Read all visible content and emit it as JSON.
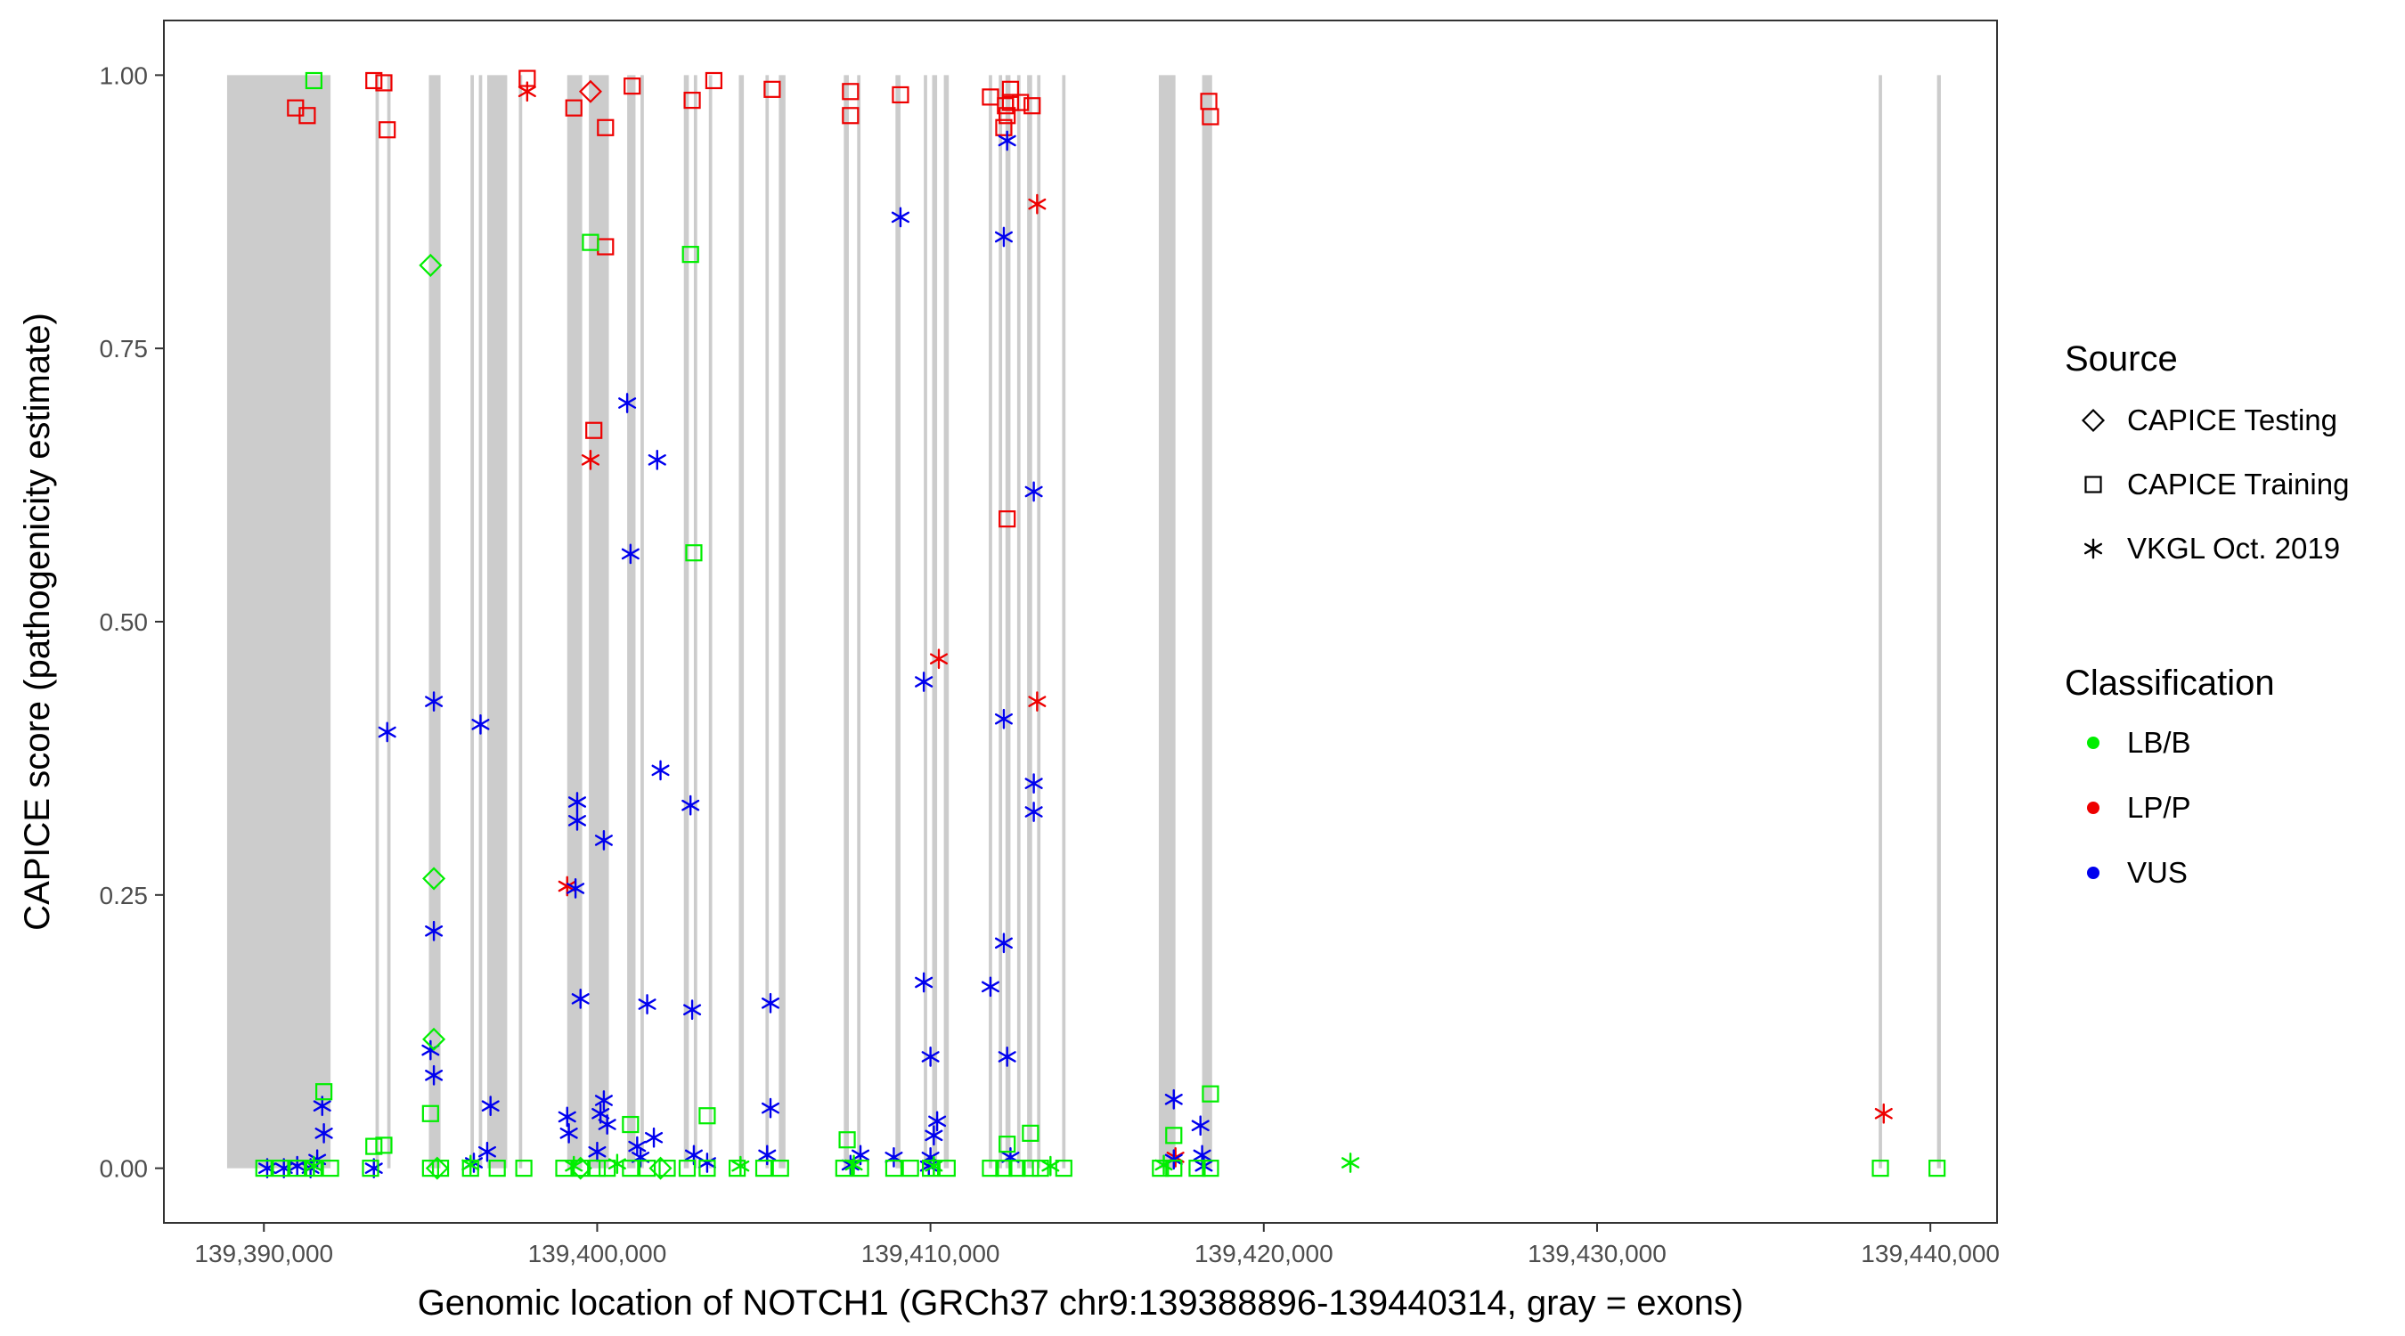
{
  "chart_data": {
    "type": "scatter",
    "title": "",
    "xlabel": "Genomic location of NOTCH1 (GRCh37 chr9:139388896-139440314, gray = exons)",
    "ylabel": "CAPICE score (pathogenicity estimate)",
    "xlim": [
      139387000,
      139442000
    ],
    "ylim": [
      -0.05,
      1.05
    ],
    "x_ticks": [
      139390000,
      139400000,
      139410000,
      139420000,
      139430000,
      139440000
    ],
    "x_tick_labels": [
      "139,390,000",
      "139,400,000",
      "139,410,000",
      "139,420,000",
      "139,430,000",
      "139,440,000"
    ],
    "y_ticks": [
      0,
      0.25,
      0.5,
      0.75,
      1.0
    ],
    "y_tick_labels": [
      "0.00",
      "0.25",
      "0.50",
      "0.75",
      "1.00"
    ],
    "grid": false,
    "exons": [
      [
        139388896,
        139392000
      ],
      [
        139393350,
        139393450
      ],
      [
        139393700,
        139393800
      ],
      [
        139394950,
        139395300
      ],
      [
        139396200,
        139396300
      ],
      [
        139396450,
        139396550
      ],
      [
        139396700,
        139397300
      ],
      [
        139397650,
        139397750
      ],
      [
        139399100,
        139399550
      ],
      [
        139399750,
        139400350
      ],
      [
        139400900,
        139401150
      ],
      [
        139401300,
        139401400
      ],
      [
        139402600,
        139402750
      ],
      [
        139402900,
        139403000
      ],
      [
        139403350,
        139403450
      ],
      [
        139404250,
        139404400
      ],
      [
        139405050,
        139405150
      ],
      [
        139405450,
        139405650
      ],
      [
        139407400,
        139407550
      ],
      [
        139407800,
        139407900
      ],
      [
        139408950,
        139409100
      ],
      [
        139409800,
        139409900
      ],
      [
        139410050,
        139410200
      ],
      [
        139410400,
        139410550
      ],
      [
        139411750,
        139411850
      ],
      [
        139412050,
        139412150
      ],
      [
        139412250,
        139412400
      ],
      [
        139412600,
        139412700
      ],
      [
        139412900,
        139413050
      ],
      [
        139413200,
        139413300
      ],
      [
        139413950,
        139414050
      ],
      [
        139416850,
        139417350
      ],
      [
        139418150,
        139418450
      ],
      [
        139438450,
        139438550
      ],
      [
        139440200,
        139440314
      ]
    ],
    "legend": {
      "placement": "right",
      "source_title": "Source",
      "classification_title": "Classification",
      "sources": [
        {
          "name": "CAPICE Testing",
          "shape": "diamond"
        },
        {
          "name": "CAPICE Training",
          "shape": "square"
        },
        {
          "name": "VKGL Oct. 2019",
          "shape": "asterisk"
        }
      ],
      "classes": [
        {
          "name": "LB/B",
          "color": "#00ee00"
        },
        {
          "name": "LP/P",
          "color": "#ee0000"
        },
        {
          "name": "VUS",
          "color": "#0000ee"
        }
      ]
    },
    "series": [
      {
        "name": "CAPICE Training LP/P",
        "shape": "square",
        "color": "#ee0000",
        "points": [
          [
            139390950,
            0.97
          ],
          [
            139391300,
            0.963
          ],
          [
            139393300,
            0.995
          ],
          [
            139393600,
            0.993
          ],
          [
            139393700,
            0.95
          ],
          [
            139397900,
            0.997
          ],
          [
            139399300,
            0.97
          ],
          [
            139399900,
            0.675
          ],
          [
            139400250,
            0.843
          ],
          [
            139400250,
            0.952
          ],
          [
            139401050,
            0.99
          ],
          [
            139402850,
            0.977
          ],
          [
            139403500,
            0.995
          ],
          [
            139405250,
            0.987
          ],
          [
            139407600,
            0.985
          ],
          [
            139407600,
            0.963
          ],
          [
            139409100,
            0.982
          ],
          [
            139411800,
            0.98
          ],
          [
            139412250,
            0.972
          ],
          [
            139412400,
            0.987
          ],
          [
            139412400,
            0.975
          ],
          [
            139412300,
            0.963
          ],
          [
            139412200,
            0.952
          ],
          [
            139412700,
            0.975
          ],
          [
            139413050,
            0.972
          ],
          [
            139412300,
            0.594
          ],
          [
            139418350,
            0.976
          ],
          [
            139418400,
            0.962
          ]
        ]
      },
      {
        "name": "CAPICE Testing LP/P",
        "shape": "diamond",
        "color": "#ee0000",
        "points": [
          [
            139399800,
            0.985
          ]
        ]
      },
      {
        "name": "VKGL LP/P",
        "shape": "asterisk",
        "color": "#ee0000",
        "points": [
          [
            139397900,
            0.985
          ],
          [
            139399800,
            0.648
          ],
          [
            139399100,
            0.258
          ],
          [
            139410250,
            0.466
          ],
          [
            139413200,
            0.882
          ],
          [
            139413200,
            0.427
          ],
          [
            139417350,
            0.01
          ],
          [
            139438600,
            0.05
          ]
        ]
      },
      {
        "name": "VKGL VUS",
        "shape": "asterisk",
        "color": "#0000ee",
        "points": [
          [
            139390100,
            0.0
          ],
          [
            139390600,
            0.0
          ],
          [
            139391000,
            0.002
          ],
          [
            139391400,
            0.0
          ],
          [
            139391750,
            0.057
          ],
          [
            139391800,
            0.032
          ],
          [
            139391600,
            0.008
          ],
          [
            139393300,
            0.0
          ],
          [
            139393700,
            0.399
          ],
          [
            139395100,
            0.427
          ],
          [
            139395100,
            0.217
          ],
          [
            139395000,
            0.108
          ],
          [
            139395100,
            0.085
          ],
          [
            139396500,
            0.406
          ],
          [
            139396800,
            0.057
          ],
          [
            139396700,
            0.015
          ],
          [
            139396300,
            0.005
          ],
          [
            139399100,
            0.047
          ],
          [
            139399150,
            0.032
          ],
          [
            139399400,
            0.335
          ],
          [
            139399400,
            0.318
          ],
          [
            139399350,
            0.256
          ],
          [
            139399500,
            0.155
          ],
          [
            139400200,
            0.3
          ],
          [
            139400200,
            0.062
          ],
          [
            139400100,
            0.05
          ],
          [
            139400300,
            0.04
          ],
          [
            139400000,
            0.015
          ],
          [
            139400900,
            0.7
          ],
          [
            139401000,
            0.562
          ],
          [
            139401500,
            0.15
          ],
          [
            139401800,
            0.648
          ],
          [
            139401900,
            0.364
          ],
          [
            139401700,
            0.028
          ],
          [
            139401200,
            0.02
          ],
          [
            139401300,
            0.01
          ],
          [
            139402800,
            0.332
          ],
          [
            139402850,
            0.145
          ],
          [
            139402900,
            0.012
          ],
          [
            139403300,
            0.005
          ],
          [
            139405200,
            0.151
          ],
          [
            139405200,
            0.055
          ],
          [
            139405100,
            0.012
          ],
          [
            139407600,
            0.003
          ],
          [
            139407900,
            0.012
          ],
          [
            139408900,
            0.01
          ],
          [
            139409100,
            0.87
          ],
          [
            139409800,
            0.445
          ],
          [
            139409800,
            0.17
          ],
          [
            139410000,
            0.102
          ],
          [
            139410200,
            0.043
          ],
          [
            139410100,
            0.03
          ],
          [
            139410000,
            0.01
          ],
          [
            139409950,
            0.002
          ],
          [
            139411800,
            0.166
          ],
          [
            139412300,
            0.94
          ],
          [
            139412200,
            0.852
          ],
          [
            139412200,
            0.411
          ],
          [
            139412200,
            0.206
          ],
          [
            139412300,
            0.102
          ],
          [
            139412400,
            0.01
          ],
          [
            139413100,
            0.619
          ],
          [
            139413100,
            0.352
          ],
          [
            139413100,
            0.326
          ],
          [
            139417300,
            0.063
          ],
          [
            139417300,
            0.008
          ],
          [
            139418100,
            0.039
          ],
          [
            139418150,
            0.012
          ],
          [
            139418200,
            0.002
          ]
        ]
      },
      {
        "name": "CAPICE Training LB/B",
        "shape": "square",
        "color": "#00ee00",
        "points": [
          [
            139391500,
            0.995
          ],
          [
            139391800,
            0.07
          ],
          [
            139393300,
            0.02
          ],
          [
            139393600,
            0.021
          ],
          [
            139395000,
            0.05
          ],
          [
            139399800,
            0.847
          ],
          [
            139402800,
            0.836
          ],
          [
            139402900,
            0.563
          ],
          [
            139403300,
            0.048
          ],
          [
            139401000,
            0.04
          ],
          [
            139407500,
            0.026
          ],
          [
            139412300,
            0.022
          ],
          [
            139413000,
            0.032
          ],
          [
            139417300,
            0.03
          ],
          [
            139418400,
            0.068
          ],
          [
            139390000,
            0.0
          ],
          [
            139390500,
            0.0
          ],
          [
            139391000,
            0.0
          ],
          [
            139391500,
            0.0
          ],
          [
            139392000,
            0.0
          ],
          [
            139393200,
            0.0
          ],
          [
            139395000,
            0.0
          ],
          [
            139395300,
            0.0
          ],
          [
            139396200,
            0.0
          ],
          [
            139397000,
            0.0
          ],
          [
            139397800,
            0.0
          ],
          [
            139399000,
            0.0
          ],
          [
            139399500,
            0.0
          ],
          [
            139400000,
            0.0
          ],
          [
            139400300,
            0.0
          ],
          [
            139401000,
            0.0
          ],
          [
            139401500,
            0.0
          ],
          [
            139402100,
            0.0
          ],
          [
            139402700,
            0.0
          ],
          [
            139403300,
            0.0
          ],
          [
            139404200,
            0.0
          ],
          [
            139405000,
            0.0
          ],
          [
            139405500,
            0.0
          ],
          [
            139407400,
            0.0
          ],
          [
            139407900,
            0.0
          ],
          [
            139408900,
            0.0
          ],
          [
            139409400,
            0.0
          ],
          [
            139410000,
            0.0
          ],
          [
            139410500,
            0.0
          ],
          [
            139411800,
            0.0
          ],
          [
            139412200,
            0.0
          ],
          [
            139412600,
            0.0
          ],
          [
            139413000,
            0.0
          ],
          [
            139413300,
            0.0
          ],
          [
            139414000,
            0.0
          ],
          [
            139416900,
            0.0
          ],
          [
            139417300,
            0.0
          ],
          [
            139418000,
            0.0
          ],
          [
            139418400,
            0.0
          ],
          [
            139438500,
            0.0
          ],
          [
            139440200,
            0.0
          ]
        ]
      },
      {
        "name": "CAPICE Testing LB/B",
        "shape": "diamond",
        "color": "#00ee00",
        "points": [
          [
            139395000,
            0.826
          ],
          [
            139395100,
            0.265
          ],
          [
            139395100,
            0.118
          ],
          [
            139395200,
            0.0
          ],
          [
            139399500,
            0.0
          ],
          [
            139401900,
            0.0
          ]
        ]
      },
      {
        "name": "VKGL LB/B",
        "shape": "asterisk",
        "color": "#00ee00",
        "points": [
          [
            139422600,
            0.005
          ],
          [
            139391500,
            0.002
          ],
          [
            139396200,
            0.003
          ],
          [
            139399300,
            0.002
          ],
          [
            139400600,
            0.004
          ],
          [
            139404300,
            0.002
          ],
          [
            139407700,
            0.003
          ],
          [
            139410100,
            0.002
          ],
          [
            139413600,
            0.002
          ],
          [
            139417000,
            0.003
          ]
        ]
      }
    ]
  }
}
